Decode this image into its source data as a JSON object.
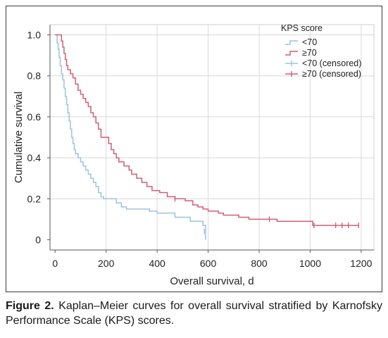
{
  "chart_data": {
    "type": "line",
    "xlabel": "Overall survival, d",
    "ylabel": "Cumulative survival",
    "xlim": [
      -20,
      1250
    ],
    "ylim": [
      -0.05,
      1.05
    ],
    "x_ticks": [
      0,
      200,
      400,
      600,
      800,
      1000,
      1200
    ],
    "x_tick_labels": [
      "0",
      "200",
      "400",
      "600",
      "800",
      "1000",
      "1200"
    ],
    "y_ticks": [
      0,
      0.2,
      0.4,
      0.6,
      0.8,
      1.0
    ],
    "y_tick_labels": [
      "0",
      "0.2",
      "0.4",
      "0.6",
      "0.8",
      "1.0"
    ],
    "grid": true,
    "legend": {
      "title": "KPS score",
      "placement": "top-right",
      "entries": [
        "<70",
        "≥70",
        "<70 (censored)",
        "≥70 (censored)"
      ]
    },
    "series": [
      {
        "name": "<70",
        "color": "#9cc3df",
        "points": [
          [
            0,
            1.0
          ],
          [
            8,
            0.96
          ],
          [
            12,
            0.93
          ],
          [
            16,
            0.89
          ],
          [
            20,
            0.85
          ],
          [
            25,
            0.81
          ],
          [
            30,
            0.78
          ],
          [
            35,
            0.74
          ],
          [
            40,
            0.7
          ],
          [
            45,
            0.66
          ],
          [
            50,
            0.62
          ],
          [
            55,
            0.58
          ],
          [
            60,
            0.54
          ],
          [
            65,
            0.5
          ],
          [
            70,
            0.47
          ],
          [
            75,
            0.44
          ],
          [
            80,
            0.42
          ],
          [
            90,
            0.4
          ],
          [
            100,
            0.38
          ],
          [
            110,
            0.36
          ],
          [
            120,
            0.34
          ],
          [
            130,
            0.32
          ],
          [
            140,
            0.3
          ],
          [
            150,
            0.28
          ],
          [
            160,
            0.26
          ],
          [
            170,
            0.23
          ],
          [
            180,
            0.21
          ],
          [
            190,
            0.2
          ],
          [
            230,
            0.2
          ],
          [
            240,
            0.18
          ],
          [
            260,
            0.16
          ],
          [
            280,
            0.15
          ],
          [
            350,
            0.15
          ],
          [
            370,
            0.14
          ],
          [
            400,
            0.13
          ],
          [
            460,
            0.13
          ],
          [
            470,
            0.11
          ],
          [
            520,
            0.11
          ],
          [
            530,
            0.09
          ],
          [
            570,
            0.09
          ],
          [
            580,
            0.07
          ],
          [
            590,
            0.0
          ]
        ],
        "censored": [
          [
            585,
            0.04
          ]
        ]
      },
      {
        "name": "≥70",
        "color": "#cf5f78",
        "points": [
          [
            0,
            1.0
          ],
          [
            20,
            1.0
          ],
          [
            25,
            0.97
          ],
          [
            30,
            0.94
          ],
          [
            35,
            0.91
          ],
          [
            40,
            0.88
          ],
          [
            45,
            0.85
          ],
          [
            50,
            0.83
          ],
          [
            60,
            0.81
          ],
          [
            70,
            0.79
          ],
          [
            80,
            0.76
          ],
          [
            90,
            0.73
          ],
          [
            100,
            0.71
          ],
          [
            110,
            0.69
          ],
          [
            120,
            0.67
          ],
          [
            130,
            0.65
          ],
          [
            140,
            0.62
          ],
          [
            150,
            0.6
          ],
          [
            160,
            0.57
          ],
          [
            170,
            0.54
          ],
          [
            180,
            0.5
          ],
          [
            200,
            0.5
          ],
          [
            210,
            0.47
          ],
          [
            220,
            0.44
          ],
          [
            230,
            0.42
          ],
          [
            240,
            0.4
          ],
          [
            250,
            0.38
          ],
          [
            270,
            0.36
          ],
          [
            290,
            0.34
          ],
          [
            300,
            0.32
          ],
          [
            320,
            0.3
          ],
          [
            340,
            0.28
          ],
          [
            360,
            0.26
          ],
          [
            380,
            0.24
          ],
          [
            410,
            0.23
          ],
          [
            440,
            0.21
          ],
          [
            470,
            0.2
          ],
          [
            510,
            0.19
          ],
          [
            540,
            0.17
          ],
          [
            560,
            0.16
          ],
          [
            580,
            0.15
          ],
          [
            600,
            0.14
          ],
          [
            640,
            0.13
          ],
          [
            660,
            0.12
          ],
          [
            720,
            0.11
          ],
          [
            760,
            0.1
          ],
          [
            840,
            0.1
          ],
          [
            870,
            0.09
          ],
          [
            1000,
            0.09
          ],
          [
            1010,
            0.07
          ],
          [
            1190,
            0.07
          ]
        ],
        "censored": [
          [
            470,
            0.2
          ],
          [
            840,
            0.1
          ],
          [
            1015,
            0.07
          ],
          [
            1100,
            0.07
          ],
          [
            1125,
            0.07
          ],
          [
            1150,
            0.07
          ],
          [
            1190,
            0.07
          ]
        ]
      }
    ]
  },
  "caption": {
    "label": "Figure 2.",
    "text": " Kaplan–Meier curves for overall survival stratified by Karnofsky Performance Scale (KPS) scores."
  }
}
